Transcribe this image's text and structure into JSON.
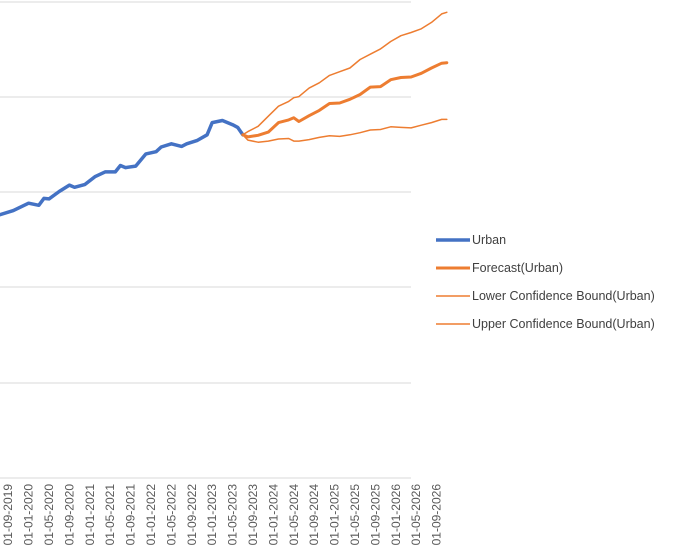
{
  "chart_data": {
    "type": "line",
    "title": "",
    "xlabel": "",
    "ylabel": "",
    "x_tick_labels": [
      "01-09-2019",
      "01-01-2020",
      "01-05-2020",
      "01-09-2020",
      "01-01-2021",
      "01-05-2021",
      "01-09-2021",
      "01-01-2022",
      "01-05-2022",
      "01-09-2022",
      "01-01-2023",
      "01-05-2023",
      "01-09-2023",
      "01-01-2024",
      "01-05-2024",
      "01-09-2024",
      "01-01-2025",
      "01-05-2025",
      "01-09-2025",
      "01-01-2026",
      "01-05-2026",
      "01-09-2026"
    ],
    "grid": true,
    "legend_position": "right",
    "y_gridlines": 5,
    "series": [
      {
        "name": "Urban",
        "color": "#4472C4",
        "x": [
          "2019-07",
          "2019-10",
          "2020-01",
          "2020-03",
          "2020-04",
          "2020-05",
          "2020-07",
          "2020-09",
          "2020-10",
          "2020-12",
          "2021-02",
          "2021-04",
          "2021-06",
          "2021-07",
          "2021-08",
          "2021-10",
          "2021-12",
          "2022-02",
          "2022-03",
          "2022-05",
          "2022-07",
          "2022-08",
          "2022-10",
          "2022-12",
          "2023-01",
          "2023-03",
          "2023-05",
          "2023-06",
          "2023-07"
        ],
        "y": [
          107.2,
          108.1,
          109.5,
          109.1,
          110.4,
          110.3,
          111.7,
          112.9,
          112.5,
          113.0,
          114.5,
          115.4,
          115.4,
          116.6,
          116.2,
          116.5,
          118.8,
          119.2,
          120.1,
          120.7,
          120.2,
          120.7,
          121.3,
          122.4,
          124.7,
          125.1,
          124.3,
          123.8,
          122.4
        ]
      },
      {
        "name": "Forecast(Urban)",
        "color": "#ED7D31",
        "x": [
          "2023-07",
          "2023-08",
          "2023-10",
          "2023-12",
          "2024-02",
          "2024-04",
          "2024-05",
          "2024-06",
          "2024-08",
          "2024-10",
          "2024-12",
          "2025-02",
          "2025-04",
          "2025-06",
          "2025-08",
          "2025-10",
          "2025-12",
          "2026-02",
          "2026-04",
          "2026-06",
          "2026-08",
          "2026-10",
          "2026-11"
        ],
        "y": [
          122.4,
          122.0,
          122.3,
          122.9,
          124.7,
          125.2,
          125.6,
          124.9,
          126.0,
          127.0,
          128.3,
          128.4,
          129.1,
          130.0,
          131.4,
          131.5,
          132.8,
          133.2,
          133.3,
          134.0,
          135.0,
          135.9,
          136.0
        ]
      },
      {
        "name": "Lower Confidence Bound(Urban)",
        "color": "#ED7D31",
        "x": [
          "2023-07",
          "2023-08",
          "2023-10",
          "2023-12",
          "2024-02",
          "2024-04",
          "2024-05",
          "2024-06",
          "2024-08",
          "2024-10",
          "2024-12",
          "2025-02",
          "2025-04",
          "2025-06",
          "2025-08",
          "2025-10",
          "2025-12",
          "2026-02",
          "2026-04",
          "2026-06",
          "2026-08",
          "2026-10",
          "2026-11"
        ],
        "y": [
          122.4,
          121.4,
          121.0,
          121.2,
          121.6,
          121.7,
          121.2,
          121.2,
          121.5,
          121.9,
          122.2,
          122.1,
          122.4,
          122.8,
          123.3,
          123.4,
          123.9,
          123.8,
          123.7,
          124.2,
          124.7,
          125.3,
          125.3
        ]
      },
      {
        "name": "Upper Confidence Bound(Urban)",
        "color": "#ED7D31",
        "x": [
          "2023-07",
          "2023-08",
          "2023-10",
          "2023-12",
          "2024-02",
          "2024-04",
          "2024-05",
          "2024-06",
          "2024-08",
          "2024-10",
          "2024-12",
          "2025-02",
          "2025-04",
          "2025-06",
          "2025-08",
          "2025-10",
          "2025-12",
          "2026-02",
          "2026-04",
          "2026-06",
          "2026-08",
          "2026-10",
          "2026-11"
        ],
        "y": [
          122.4,
          123.0,
          124.0,
          125.9,
          127.8,
          128.7,
          129.4,
          129.6,
          131.2,
          132.2,
          133.6,
          134.3,
          135.0,
          136.6,
          137.6,
          138.6,
          140.0,
          141.1,
          141.7,
          142.4,
          143.6,
          145.2,
          145.5
        ]
      }
    ],
    "legend": {
      "items": [
        {
          "label": "Urban",
          "color": "#4472C4",
          "weight": "thick"
        },
        {
          "label": "Forecast(Urban)",
          "color": "#ED7D31",
          "weight": "thick"
        },
        {
          "label": "Lower Confidence Bound(Urban)",
          "color": "#ED7D31",
          "weight": "thin"
        },
        {
          "label": "Upper Confidence Bound(Urban)",
          "color": "#ED7D31",
          "weight": "thin"
        }
      ]
    }
  }
}
